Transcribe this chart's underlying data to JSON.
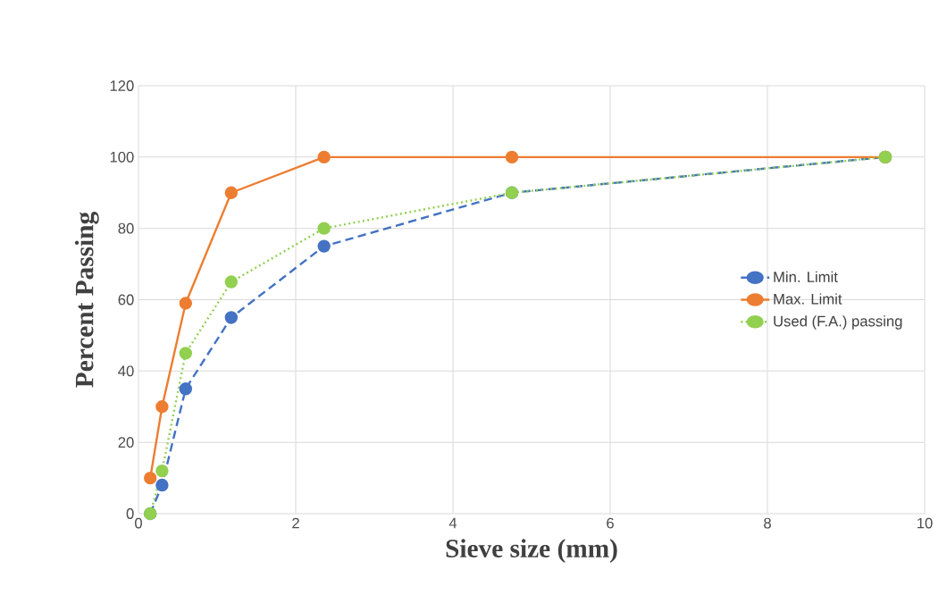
{
  "chart_data": {
    "type": "line",
    "xlabel": "Sieve size (mm)",
    "ylabel": "Percent Passing",
    "x": [
      0.15,
      0.3,
      0.6,
      1.18,
      2.36,
      4.75,
      9.5
    ],
    "series": [
      {
        "name": "Min. Limit",
        "color": "#4472c4",
        "line_style": "dashed",
        "values": [
          0,
          8,
          35,
          55,
          75,
          90,
          100
        ]
      },
      {
        "name": "Max. Limit",
        "color": "#ed7d31",
        "line_style": "solid",
        "values": [
          10,
          30,
          59,
          90,
          100,
          100,
          100
        ]
      },
      {
        "name": "Used (F.A.)  passing",
        "color": "#92d050",
        "line_style": "dotted",
        "values": [
          0,
          12,
          45,
          65,
          80,
          90,
          100
        ]
      }
    ],
    "xlim": [
      0,
      10
    ],
    "ylim": [
      0,
      120
    ],
    "xticks": [
      0,
      2,
      4,
      6,
      8,
      10
    ],
    "yticks": [
      0,
      20,
      40,
      60,
      80,
      100,
      120
    ],
    "grid": true,
    "legend": "right",
    "marker": "circle"
  }
}
